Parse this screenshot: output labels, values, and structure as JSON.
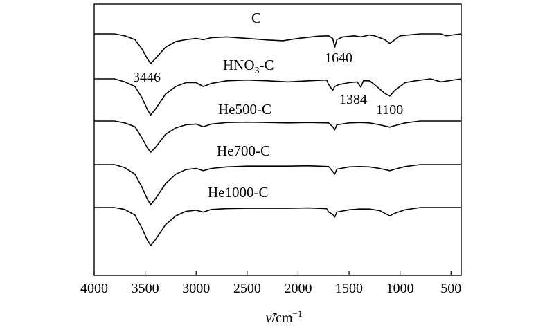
{
  "chart_data": {
    "type": "line",
    "xlabel": "ν̃/cm⁻¹",
    "xlim": [
      4000,
      400
    ],
    "x_reversed": true,
    "xticks": [
      4000,
      3500,
      3000,
      2500,
      2000,
      1500,
      1000,
      500
    ],
    "y_ticks_shown": false,
    "grid": false,
    "series": [
      {
        "name": "C",
        "baseline": 0,
        "points": [
          [
            4000,
            0
          ],
          [
            3800,
            0
          ],
          [
            3700,
            -0.5
          ],
          [
            3600,
            -1.5
          ],
          [
            3530,
            -4
          ],
          [
            3480,
            -6.5
          ],
          [
            3446,
            -7.8
          ],
          [
            3400,
            -6.5
          ],
          [
            3300,
            -3.5
          ],
          [
            3200,
            -2
          ],
          [
            3100,
            -1.5
          ],
          [
            3000,
            -1.2
          ],
          [
            2930,
            -1.5
          ],
          [
            2850,
            -1
          ],
          [
            2700,
            -0.8
          ],
          [
            2500,
            -1.2
          ],
          [
            2300,
            -1.6
          ],
          [
            2150,
            -1.8
          ],
          [
            2000,
            -1.2
          ],
          [
            1800,
            -0.6
          ],
          [
            1700,
            -0.5
          ],
          [
            1660,
            -1.2
          ],
          [
            1640,
            -3.5
          ],
          [
            1620,
            -1.5
          ],
          [
            1560,
            -0.8
          ],
          [
            1450,
            -0.5
          ],
          [
            1384,
            -0.8
          ],
          [
            1300,
            -0.3
          ],
          [
            1250,
            -0.5
          ],
          [
            1150,
            -1.5
          ],
          [
            1100,
            -2.5
          ],
          [
            1050,
            -1.5
          ],
          [
            1000,
            -0.5
          ],
          [
            800,
            0
          ],
          [
            600,
            0
          ],
          [
            550,
            -0.5
          ],
          [
            400,
            0
          ]
        ]
      },
      {
        "name": "HNO₃-C",
        "baseline": 0,
        "points": [
          [
            4000,
            0
          ],
          [
            3800,
            0
          ],
          [
            3700,
            -0.8
          ],
          [
            3600,
            -2
          ],
          [
            3530,
            -5
          ],
          [
            3480,
            -8
          ],
          [
            3446,
            -9.5
          ],
          [
            3400,
            -8
          ],
          [
            3300,
            -4
          ],
          [
            3200,
            -2
          ],
          [
            3100,
            -1
          ],
          [
            3000,
            -1
          ],
          [
            2930,
            -2
          ],
          [
            2850,
            -1.2
          ],
          [
            2700,
            -0.5
          ],
          [
            2500,
            -0.3
          ],
          [
            2300,
            -0.5
          ],
          [
            2100,
            -0.8
          ],
          [
            1900,
            -0.5
          ],
          [
            1720,
            -0.3
          ],
          [
            1700,
            -1.5
          ],
          [
            1660,
            -3
          ],
          [
            1640,
            -2
          ],
          [
            1600,
            -1.5
          ],
          [
            1500,
            -1
          ],
          [
            1420,
            -0.8
          ],
          [
            1384,
            -2.2
          ],
          [
            1360,
            -0.5
          ],
          [
            1300,
            -0.5
          ],
          [
            1250,
            -1.5
          ],
          [
            1150,
            -3.8
          ],
          [
            1100,
            -4.5
          ],
          [
            1050,
            -3
          ],
          [
            950,
            -1
          ],
          [
            850,
            -0.5
          ],
          [
            700,
            0
          ],
          [
            600,
            -0.8
          ],
          [
            400,
            0
          ]
        ]
      },
      {
        "name": "He500-C",
        "baseline": 0,
        "points": [
          [
            4000,
            0
          ],
          [
            3800,
            0
          ],
          [
            3700,
            -0.5
          ],
          [
            3600,
            -1.5
          ],
          [
            3530,
            -4.5
          ],
          [
            3480,
            -7
          ],
          [
            3446,
            -8.2
          ],
          [
            3400,
            -7
          ],
          [
            3300,
            -3.5
          ],
          [
            3200,
            -1.8
          ],
          [
            3100,
            -1
          ],
          [
            3000,
            -0.8
          ],
          [
            2930,
            -1.5
          ],
          [
            2850,
            -0.8
          ],
          [
            2700,
            -0.4
          ],
          [
            2500,
            -0.3
          ],
          [
            2300,
            -0.4
          ],
          [
            2100,
            -0.5
          ],
          [
            1900,
            -0.4
          ],
          [
            1700,
            -0.5
          ],
          [
            1660,
            -1.5
          ],
          [
            1640,
            -2.3
          ],
          [
            1620,
            -1
          ],
          [
            1500,
            -0.5
          ],
          [
            1400,
            -0.4
          ],
          [
            1300,
            -0.5
          ],
          [
            1200,
            -1
          ],
          [
            1100,
            -1.6
          ],
          [
            1050,
            -1.2
          ],
          [
            950,
            -0.5
          ],
          [
            800,
            0
          ],
          [
            600,
            0
          ],
          [
            400,
            0
          ]
        ]
      },
      {
        "name": "He700-C",
        "baseline": 0,
        "points": [
          [
            4000,
            0
          ],
          [
            3800,
            0
          ],
          [
            3700,
            -0.8
          ],
          [
            3600,
            -2.5
          ],
          [
            3530,
            -6
          ],
          [
            3480,
            -9
          ],
          [
            3446,
            -10.5
          ],
          [
            3400,
            -9
          ],
          [
            3300,
            -5
          ],
          [
            3200,
            -2.5
          ],
          [
            3100,
            -1.3
          ],
          [
            3000,
            -1
          ],
          [
            2930,
            -1.6
          ],
          [
            2850,
            -1
          ],
          [
            2700,
            -0.6
          ],
          [
            2500,
            -0.4
          ],
          [
            2300,
            -0.4
          ],
          [
            2100,
            -0.4
          ],
          [
            1900,
            -0.3
          ],
          [
            1700,
            -0.5
          ],
          [
            1660,
            -1.8
          ],
          [
            1640,
            -2.5
          ],
          [
            1620,
            -1.2
          ],
          [
            1500,
            -0.6
          ],
          [
            1400,
            -0.5
          ],
          [
            1300,
            -0.6
          ],
          [
            1200,
            -1
          ],
          [
            1100,
            -1.6
          ],
          [
            1050,
            -1.2
          ],
          [
            950,
            -0.5
          ],
          [
            800,
            0
          ],
          [
            600,
            0
          ],
          [
            400,
            0
          ]
        ]
      },
      {
        "name": "He1000-C",
        "baseline": 0,
        "points": [
          [
            4000,
            0
          ],
          [
            3800,
            0
          ],
          [
            3700,
            -0.5
          ],
          [
            3600,
            -2
          ],
          [
            3530,
            -5.5
          ],
          [
            3480,
            -8.5
          ],
          [
            3446,
            -10
          ],
          [
            3400,
            -8.5
          ],
          [
            3300,
            -4.5
          ],
          [
            3200,
            -2.2
          ],
          [
            3100,
            -1
          ],
          [
            3000,
            -0.7
          ],
          [
            2930,
            -1.2
          ],
          [
            2850,
            -0.5
          ],
          [
            2700,
            -0.3
          ],
          [
            2500,
            -0.2
          ],
          [
            2300,
            -0.2
          ],
          [
            2100,
            -0.2
          ],
          [
            1900,
            -0.1
          ],
          [
            1720,
            -0.3
          ],
          [
            1700,
            -1.2
          ],
          [
            1660,
            -1.8
          ],
          [
            1640,
            -2.5
          ],
          [
            1620,
            -1.2
          ],
          [
            1500,
            -0.6
          ],
          [
            1400,
            -0.4
          ],
          [
            1300,
            -0.4
          ],
          [
            1200,
            -0.8
          ],
          [
            1100,
            -2.2
          ],
          [
            1050,
            -1.5
          ],
          [
            950,
            -0.6
          ],
          [
            800,
            0
          ],
          [
            600,
            0
          ],
          [
            400,
            0
          ]
        ]
      }
    ],
    "annotations": [
      {
        "text": "3446",
        "x": 3446,
        "series": "HNO₃-C"
      },
      {
        "text": "1640",
        "x": 1640,
        "series": "C"
      },
      {
        "text": "1384",
        "x": 1384,
        "series": "HNO₃-C"
      },
      {
        "text": "1100",
        "x": 1100,
        "series": "HNO₃-C"
      }
    ],
    "labels_text": {
      "s0": "C",
      "s1_main": "HNO",
      "s1_sub": "3",
      "s1_tail": "-C",
      "s2": "He500-C",
      "s3": "He700-C",
      "s4": "He1000-C"
    },
    "xlabel_parts": {
      "symbol": "ν̃",
      "unit": "/cm",
      "exp": "−1"
    }
  }
}
